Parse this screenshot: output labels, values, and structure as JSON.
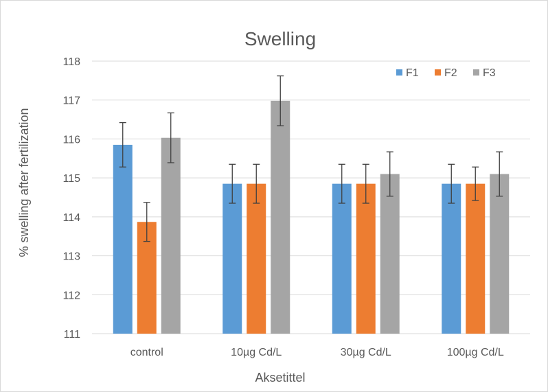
{
  "chart_data": {
    "type": "bar",
    "title": "Swelling",
    "xlabel": "Aksetittel",
    "ylabel": "% swelling after fertilization",
    "ylim": [
      111,
      118
    ],
    "yticks": [
      111,
      112,
      113,
      114,
      115,
      116,
      117,
      118
    ],
    "grid": true,
    "legend_position": "top-right",
    "categories": [
      "control",
      "10µg Cd/L",
      "30µg Cd/L",
      "100µg Cd/L"
    ],
    "series": [
      {
        "name": "F1",
        "color": "#5B9BD5",
        "values": [
          115.85,
          114.85,
          114.85,
          114.85
        ],
        "errors": [
          0.57,
          0.5,
          0.5,
          0.5
        ]
      },
      {
        "name": "F2",
        "color": "#ED7D31",
        "values": [
          113.87,
          114.85,
          114.85,
          114.85
        ],
        "errors": [
          0.5,
          0.5,
          0.5,
          0.43
        ]
      },
      {
        "name": "F3",
        "color": "#A5A5A5",
        "values": [
          116.03,
          116.98,
          115.1,
          115.1
        ],
        "errors": [
          0.64,
          0.64,
          0.57,
          0.57
        ]
      }
    ]
  }
}
